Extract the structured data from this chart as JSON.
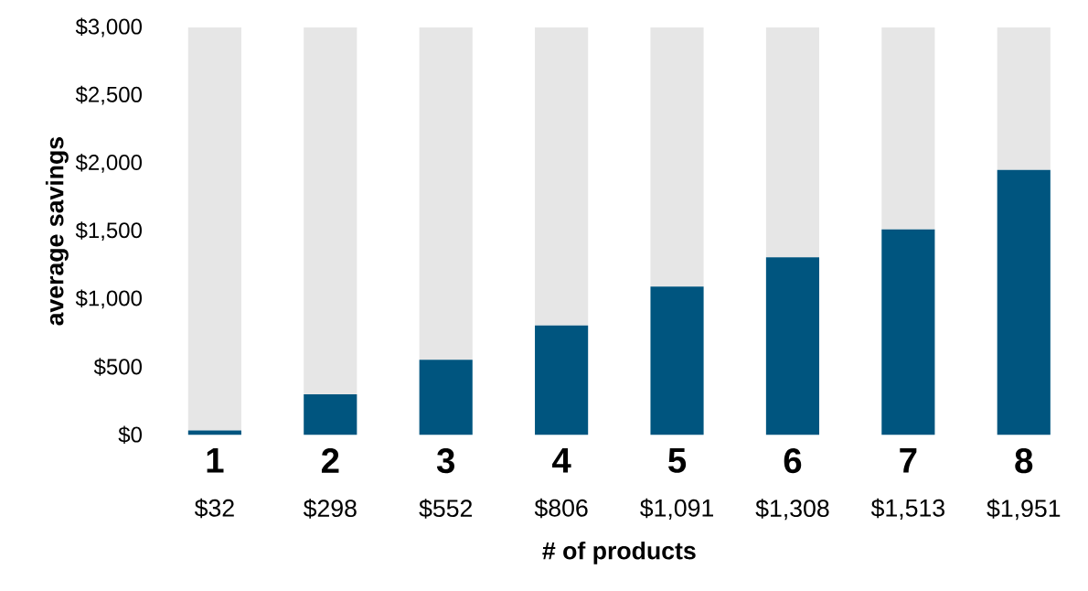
{
  "chart_data": {
    "type": "bar",
    "xlabel": "# of products",
    "ylabel": "average savings",
    "categories": [
      "1",
      "2",
      "3",
      "4",
      "5",
      "6",
      "7",
      "8"
    ],
    "stacked": true,
    "ylim": [
      0,
      3000
    ],
    "yticks": [
      {
        "value": 0,
        "label": "$0"
      },
      {
        "value": 500,
        "label": "$500"
      },
      {
        "value": 1000,
        "label": "$1,000"
      },
      {
        "value": 1500,
        "label": "$1,500"
      },
      {
        "value": 2000,
        "label": "$2,000"
      },
      {
        "value": 2500,
        "label": "$2,500"
      },
      {
        "value": 3000,
        "label": "$3,000"
      }
    ],
    "series": [
      {
        "color": "#00557f",
        "values": [
          32,
          298,
          552,
          806,
          1091,
          1308,
          1513,
          1951
        ],
        "value_labels": [
          "$32",
          "$298",
          "$552",
          "$806",
          "$1,091",
          "$1,308",
          "$1,513",
          "$1,951"
        ]
      },
      {
        "color": "#e6e6e6",
        "values": [
          2968,
          2702,
          2448,
          2194,
          1909,
          1692,
          1487,
          1049
        ]
      }
    ]
  }
}
